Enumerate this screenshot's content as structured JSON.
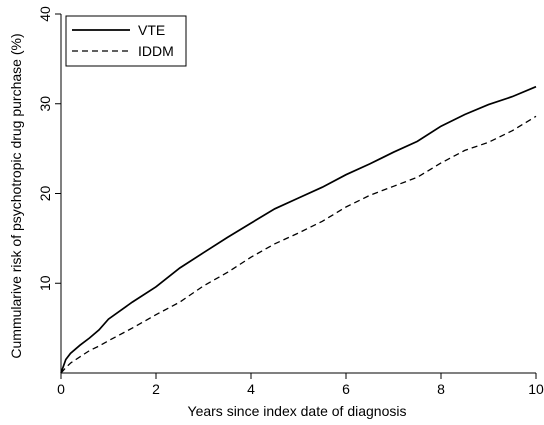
{
  "chart_data": {
    "type": "line",
    "xlabel": "Years since index date of diagnosis",
    "ylabel": "Cummularive risk of psychotropic drug purchase (%)",
    "xlim": [
      0,
      10
    ],
    "ylim": [
      0,
      40
    ],
    "xticks": [
      0,
      2,
      4,
      6,
      8,
      10
    ],
    "yticks": [
      10,
      20,
      30,
      40
    ],
    "grid": false,
    "legend_position": "top-left",
    "series": [
      {
        "name": "VTE",
        "style": "solid",
        "color": "#000000",
        "x": [
          0,
          0.1,
          0.2,
          0.4,
          0.6,
          0.8,
          1.0,
          1.5,
          2.0,
          2.5,
          3.0,
          3.5,
          4.0,
          4.5,
          5.0,
          5.5,
          6.0,
          6.5,
          7.0,
          7.5,
          8.0,
          8.5,
          9.0,
          9.5,
          10.0
        ],
        "y": [
          0,
          1.5,
          2.2,
          3.1,
          3.9,
          4.8,
          6.0,
          7.9,
          9.6,
          11.7,
          13.4,
          15.1,
          16.7,
          18.3,
          19.5,
          20.7,
          22.1,
          23.3,
          24.6,
          25.8,
          27.5,
          28.8,
          29.9,
          30.8,
          31.9
        ]
      },
      {
        "name": "IDDM",
        "style": "dashed",
        "color": "#000000",
        "x": [
          0,
          0.1,
          0.2,
          0.4,
          0.6,
          0.8,
          1.0,
          1.5,
          2.0,
          2.5,
          3.0,
          3.5,
          4.0,
          4.5,
          5.0,
          5.5,
          6.0,
          6.5,
          7.0,
          7.5,
          8.0,
          8.5,
          9.0,
          9.5,
          10.0
        ],
        "y": [
          0,
          0.6,
          1.1,
          1.8,
          2.5,
          3.0,
          3.6,
          5.0,
          6.5,
          7.9,
          9.7,
          11.2,
          12.9,
          14.4,
          15.6,
          16.9,
          18.5,
          19.8,
          20.8,
          21.8,
          23.4,
          24.8,
          25.7,
          27.0,
          28.6
        ]
      }
    ]
  }
}
